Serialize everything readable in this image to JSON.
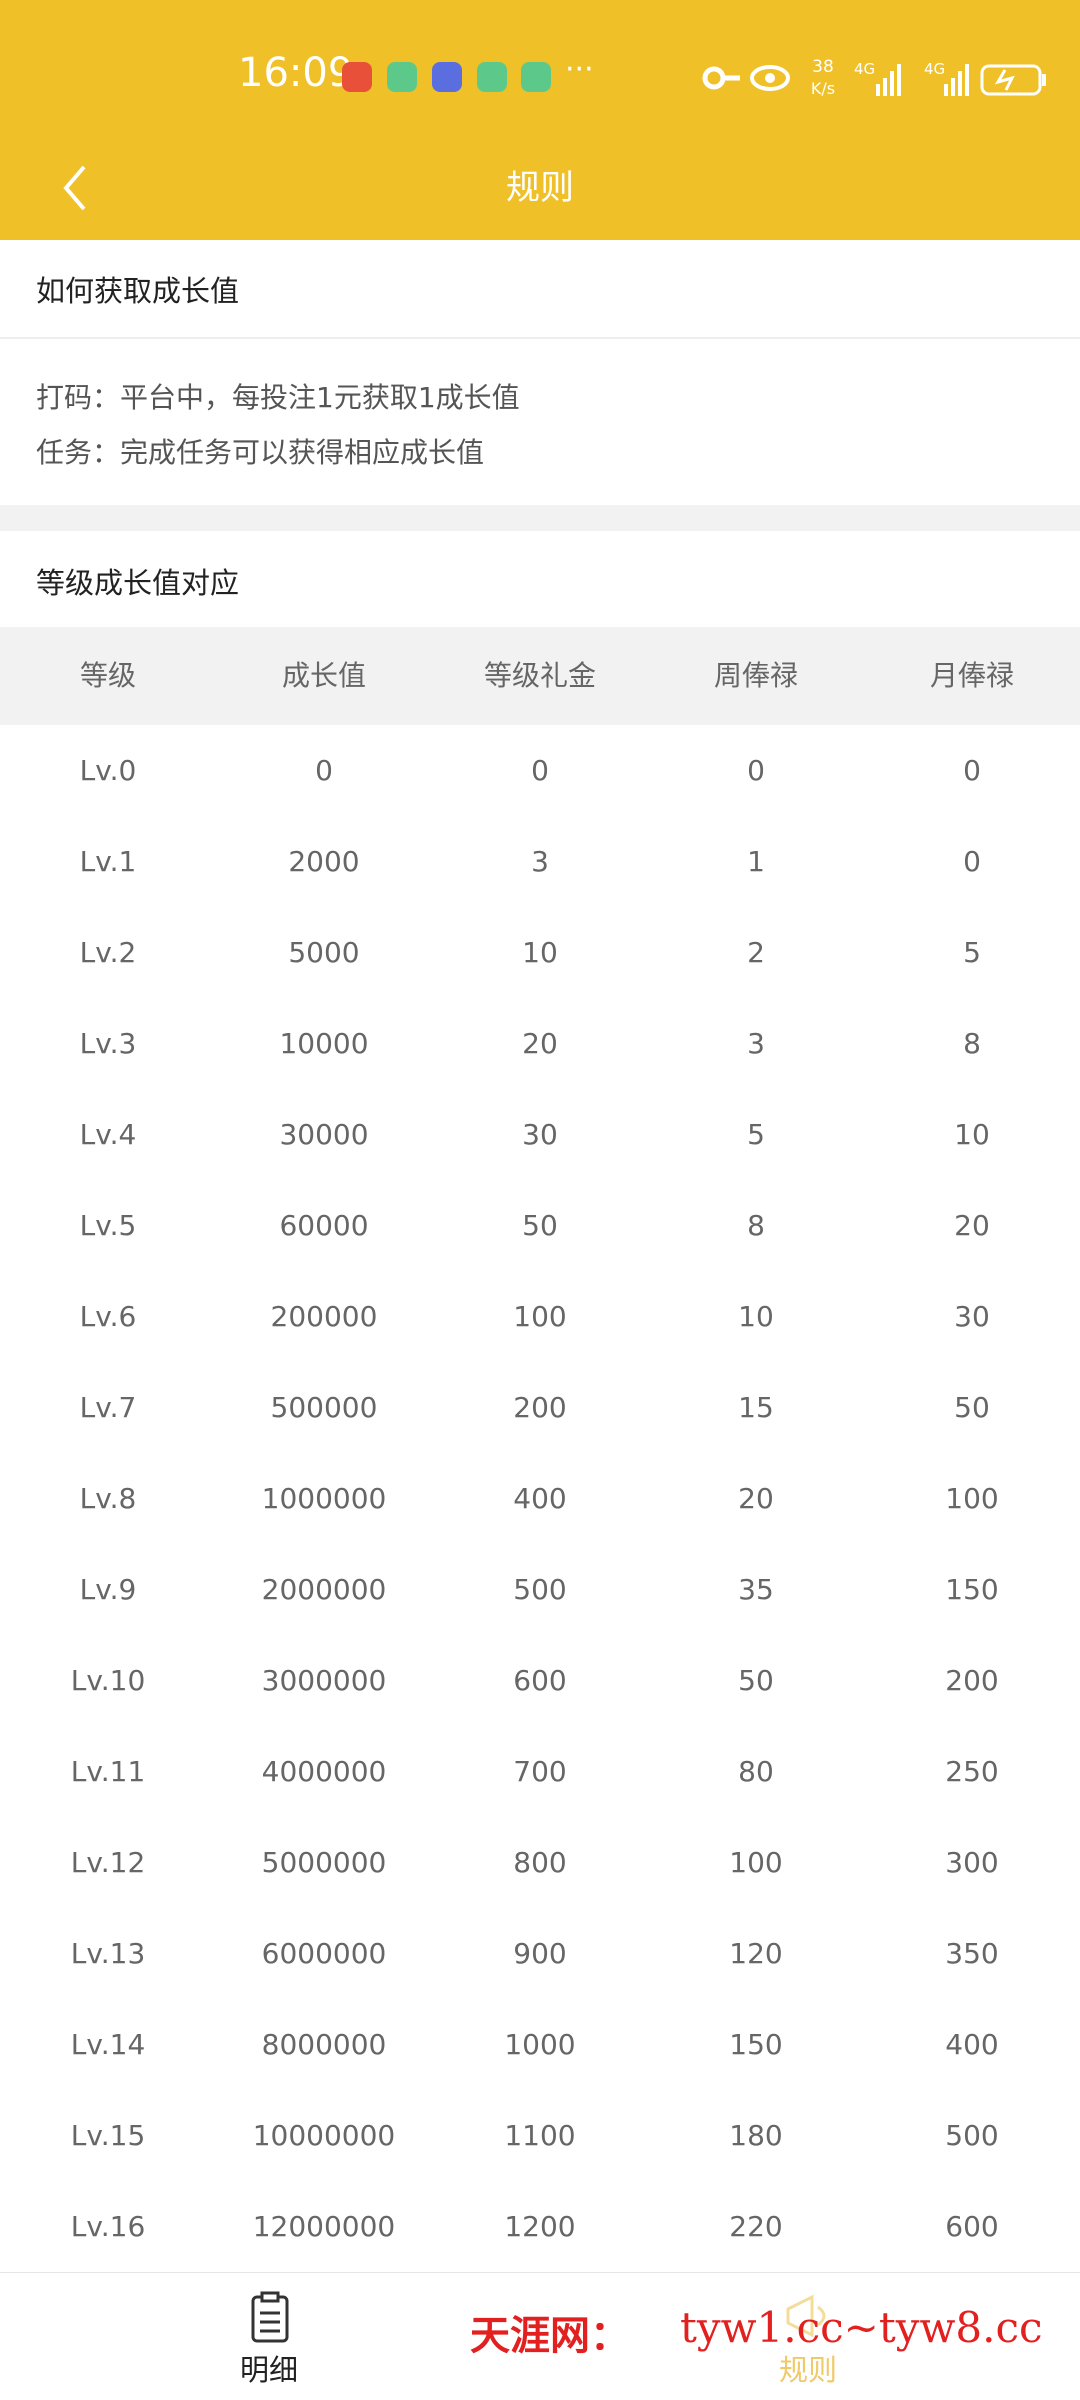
{
  "status_bar": {
    "time": "16:09",
    "speed": "38",
    "speed_unit": "K/s",
    "network_1": "4G",
    "network_2": "4G"
  },
  "header": {
    "title": "规则"
  },
  "section_1": {
    "title": "如何获取成长值",
    "lines": [
      "打码：平台中，每投注1元获取1成长值",
      "任务：完成任务可以获得相应成长值"
    ]
  },
  "section_2": {
    "title": "等级成长值对应"
  },
  "table": {
    "columns": [
      "等级",
      "成长值",
      "等级礼金",
      "周俸禄",
      "月俸禄"
    ],
    "rows": [
      [
        "Lv.0",
        0,
        0,
        0,
        0
      ],
      [
        "Lv.1",
        2000,
        3,
        1,
        0
      ],
      [
        "Lv.2",
        5000,
        10,
        2,
        5
      ],
      [
        "Lv.3",
        10000,
        20,
        3,
        8
      ],
      [
        "Lv.4",
        30000,
        30,
        5,
        10
      ],
      [
        "Lv.5",
        60000,
        50,
        8,
        20
      ],
      [
        "Lv.6",
        200000,
        100,
        10,
        30
      ],
      [
        "Lv.7",
        500000,
        200,
        15,
        50
      ],
      [
        "Lv.8",
        1000000,
        400,
        20,
        100
      ],
      [
        "Lv.9",
        2000000,
        500,
        35,
        150
      ],
      [
        "Lv.10",
        3000000,
        600,
        50,
        200
      ],
      [
        "Lv.11",
        4000000,
        700,
        80,
        250
      ],
      [
        "Lv.12",
        5000000,
        800,
        100,
        300
      ],
      [
        "Lv.13",
        6000000,
        900,
        120,
        350
      ],
      [
        "Lv.14",
        8000000,
        1000,
        150,
        400
      ],
      [
        "Lv.15",
        10000000,
        1100,
        180,
        500
      ],
      [
        "Lv.16",
        12000000,
        1200,
        220,
        600
      ]
    ]
  },
  "tab_bar": {
    "tabs": [
      "明细",
      "规则"
    ]
  },
  "watermark": {
    "site": "天涯网：",
    "urls": "tyw1.cc~tyw8.cc"
  }
}
